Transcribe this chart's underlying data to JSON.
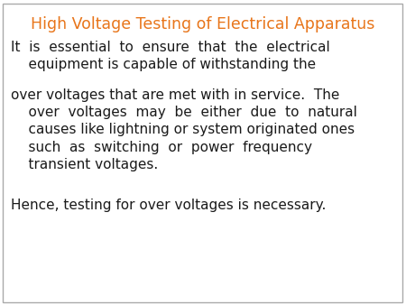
{
  "title": "High Voltage Testing of Electrical Apparatus",
  "title_color": "#E8751A",
  "title_fontsize": 12.5,
  "body_color": "#1a1a1a",
  "body_fontsize": 11.0,
  "background_color": "#ffffff",
  "border_color": "#aaaaaa",
  "p1_line1": "It  is  essential  to  ensure  that  the  electrical",
  "p1_line2": "    equipment is capable of withstanding the",
  "p2_line1": "over voltages that are met with in service.  The",
  "p2_line2": "    over  voltages  may  be  either  due  to  natural",
  "p2_line3": "    causes like lightning or system originated ones",
  "p2_line4": "    such  as  switching  or  power  frequency",
  "p2_line5": "    transient voltages.",
  "p3": "Hence, testing for over voltages is necessary."
}
